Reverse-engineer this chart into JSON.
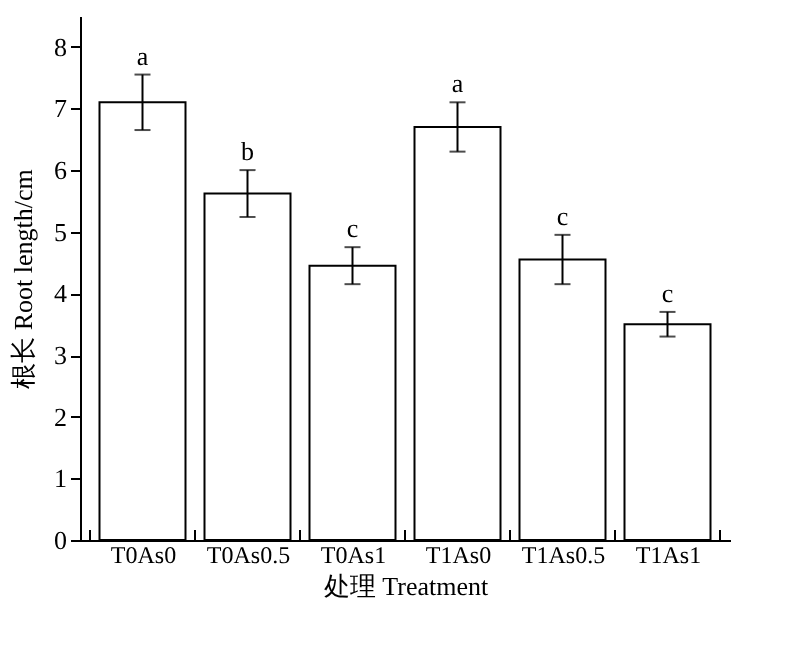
{
  "chart_data": {
    "type": "bar",
    "xlabel": "处理 Treatment",
    "ylabel": "根长 Root length/cm",
    "categories": [
      "T0As0",
      "T0As0.5",
      "T0As1",
      "T1As0",
      "T1As0.5",
      "T1As1"
    ],
    "values": [
      7.1,
      5.62,
      4.45,
      6.7,
      4.55,
      3.5
    ],
    "errors": [
      0.45,
      0.38,
      0.3,
      0.4,
      0.4,
      0.2
    ],
    "color": "#ffffff",
    "ylim": [
      0,
      8.5
    ],
    "yticks": [
      0,
      1,
      2,
      3,
      4,
      5,
      6,
      7,
      8
    ],
    "grid": false,
    "annotations": [
      {
        "text": "a",
        "x": "T0As0",
        "y": 7.55
      },
      {
        "text": "b",
        "x": "T0As0.5",
        "y": 6.0
      },
      {
        "text": "c",
        "x": "T0As1",
        "y": 4.75
      },
      {
        "text": "a",
        "x": "T1As0",
        "y": 7.1
      },
      {
        "text": "c",
        "x": "T1As0.5",
        "y": 4.95
      },
      {
        "text": "c",
        "x": "T1As1",
        "y": 3.7
      }
    ]
  }
}
